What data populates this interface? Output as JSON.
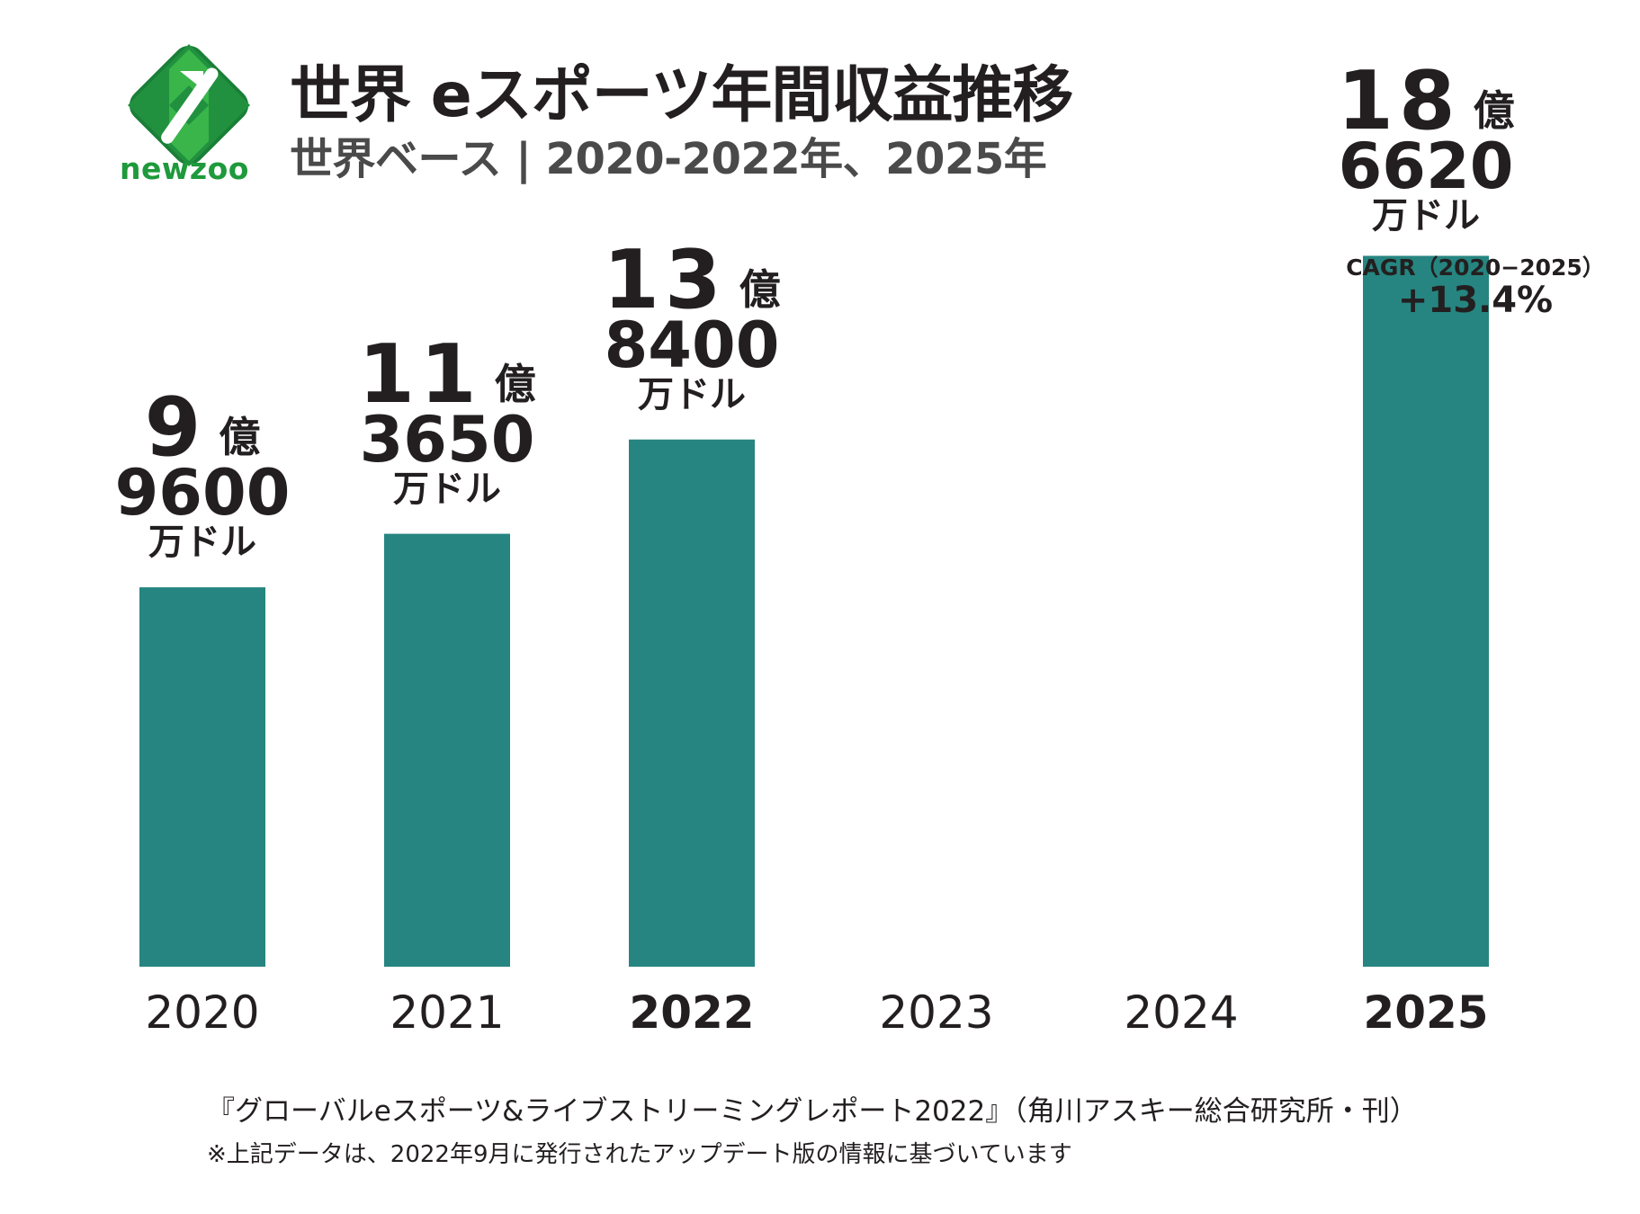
{
  "header": {
    "logo_text": "newzoo",
    "title": "世界 eスポーツ年間収益推移",
    "subtitle": "世界ベース | 2020-2022年、2025年"
  },
  "colors": {
    "bar": "#268580",
    "logo_dark": "#1a7f37",
    "logo_light": "#39b54a",
    "text": "#231f20"
  },
  "chart_data": {
    "type": "bar",
    "title": "世界 eスポーツ年間収益推移",
    "subtitle": "世界ベース | 2020-2022年、2025年",
    "xlabel": "",
    "ylabel": "",
    "unit": "万ドル",
    "categories": [
      "2020",
      "2021",
      "2022",
      "2023",
      "2024",
      "2025"
    ],
    "bold_categories": [
      "2022",
      "2025"
    ],
    "values": [
      99600,
      113650,
      138400,
      null,
      null,
      186620
    ],
    "ylim": [
      0,
      200000
    ],
    "grid": false,
    "data_labels": [
      {
        "category": "2020",
        "oku": "9",
        "oku_unit": "億",
        "man": "9600",
        "man_unit": "万ドル"
      },
      {
        "category": "2021",
        "oku": "11",
        "oku_unit": "億",
        "man": "3650",
        "man_unit": "万ドル"
      },
      {
        "category": "2022",
        "oku": "13",
        "oku_unit": "億",
        "man": "8400",
        "man_unit": "万ドル"
      },
      {
        "category": "2025",
        "oku": "18",
        "oku_unit": "億",
        "man": "6620",
        "man_unit": "万ドル"
      }
    ],
    "annotation": {
      "label": "CAGR（2020−2025）",
      "value": "+13.4%"
    }
  },
  "footer": {
    "source": "『グローバルeスポーツ&ライブストリーミングレポート2022』（角川アスキー総合研究所・刊）",
    "note": "※上記データは、2022年9月に発行されたアップデート版の情報に基づいています"
  }
}
